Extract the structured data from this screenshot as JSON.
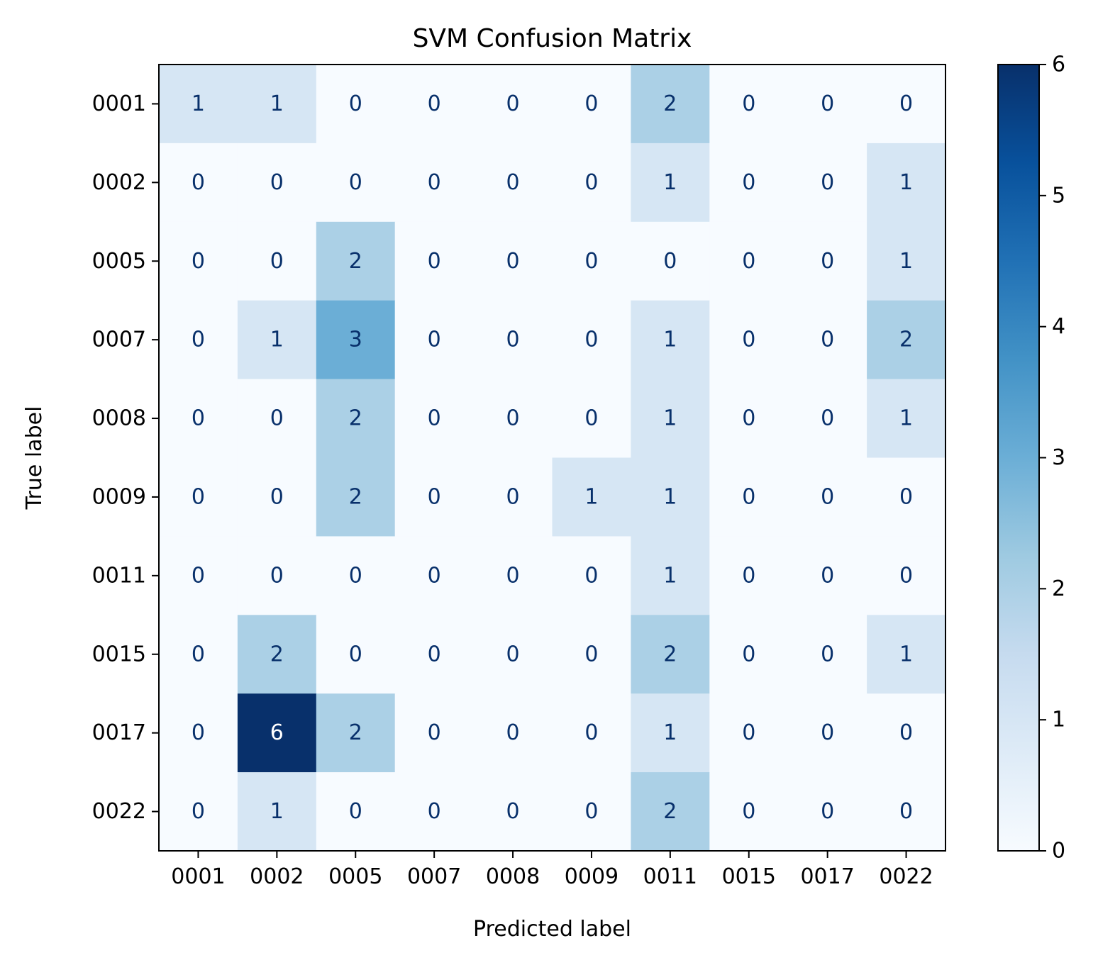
{
  "chart_data": {
    "type": "heatmap",
    "title": "SVM Confusion Matrix",
    "xlabel": "Predicted label",
    "ylabel": "True label",
    "x_categories": [
      "0001",
      "0002",
      "0005",
      "0007",
      "0008",
      "0009",
      "0011",
      "0015",
      "0017",
      "0022"
    ],
    "y_categories": [
      "0001",
      "0002",
      "0005",
      "0007",
      "0008",
      "0009",
      "0011",
      "0015",
      "0017",
      "0022"
    ],
    "values": [
      [
        1,
        1,
        0,
        0,
        0,
        0,
        2,
        0,
        0,
        0
      ],
      [
        0,
        0,
        0,
        0,
        0,
        0,
        1,
        0,
        0,
        1
      ],
      [
        0,
        0,
        2,
        0,
        0,
        0,
        0,
        0,
        0,
        1
      ],
      [
        0,
        1,
        3,
        0,
        0,
        0,
        1,
        0,
        0,
        2
      ],
      [
        0,
        0,
        2,
        0,
        0,
        0,
        1,
        0,
        0,
        1
      ],
      [
        0,
        0,
        2,
        0,
        0,
        1,
        1,
        0,
        0,
        0
      ],
      [
        0,
        0,
        0,
        0,
        0,
        0,
        1,
        0,
        0,
        0
      ],
      [
        0,
        2,
        0,
        0,
        0,
        0,
        2,
        0,
        0,
        1
      ],
      [
        0,
        6,
        2,
        0,
        0,
        0,
        1,
        0,
        0,
        0
      ],
      [
        0,
        1,
        0,
        0,
        0,
        0,
        2,
        0,
        0,
        0
      ]
    ],
    "colormap": "Blues",
    "vmin": 0,
    "vmax": 6,
    "colorbar_ticks": [
      "0",
      "1",
      "2",
      "3",
      "4",
      "5",
      "6"
    ],
    "colors": {
      "cmap_stops": [
        "#f7fbff",
        "#deebf7",
        "#c6dbef",
        "#9ecae1",
        "#6baed6",
        "#4292c6",
        "#2171b5",
        "#08519c",
        "#08306b"
      ],
      "text_dark": "#08306b",
      "text_light": "#ffffff"
    }
  }
}
